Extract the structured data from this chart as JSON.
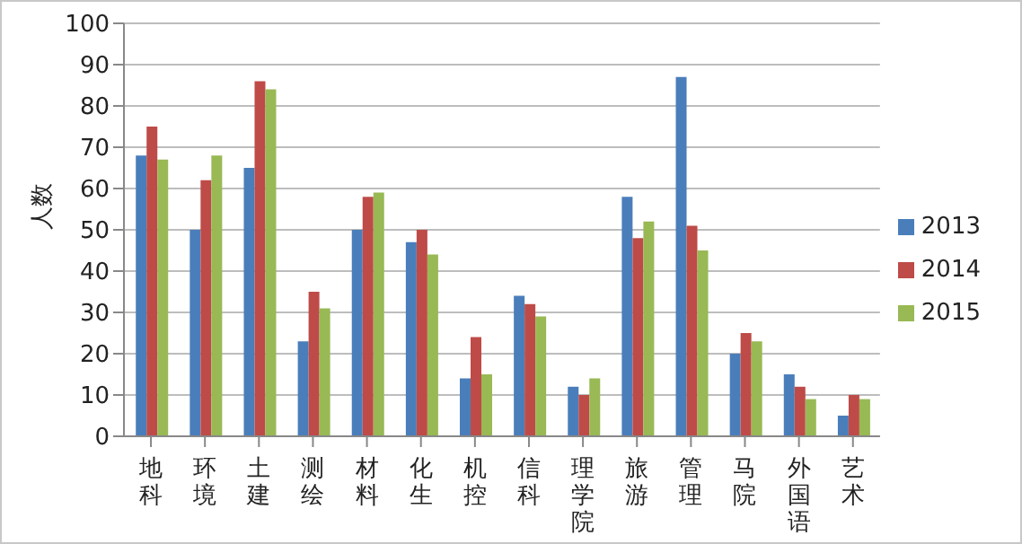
{
  "chart_data": {
    "type": "bar",
    "ylabel": "人数",
    "categories": [
      "地科",
      "环境",
      "土建",
      "测绘",
      "材料",
      "化生",
      "机控",
      "信科",
      "理学院",
      "旅游",
      "管理",
      "马院",
      "外国语",
      "艺术"
    ],
    "series": [
      {
        "name": "2013",
        "color": "#4a7ebb",
        "values": [
          68,
          50,
          65,
          23,
          50,
          47,
          14,
          34,
          12,
          58,
          87,
          20,
          15,
          5
        ]
      },
      {
        "name": "2014",
        "color": "#be4b48",
        "values": [
          75,
          62,
          86,
          35,
          58,
          50,
          24,
          32,
          10,
          48,
          51,
          25,
          12,
          10
        ]
      },
      {
        "name": "2015",
        "color": "#98b954",
        "values": [
          67,
          68,
          84,
          31,
          59,
          44,
          15,
          29,
          14,
          52,
          45,
          23,
          9,
          9
        ]
      }
    ],
    "ylim": [
      0,
      100
    ],
    "yticks": [
      0,
      10,
      20,
      30,
      40,
      50,
      60,
      70,
      80,
      90,
      100
    ],
    "grid": "y",
    "legend": "right"
  }
}
